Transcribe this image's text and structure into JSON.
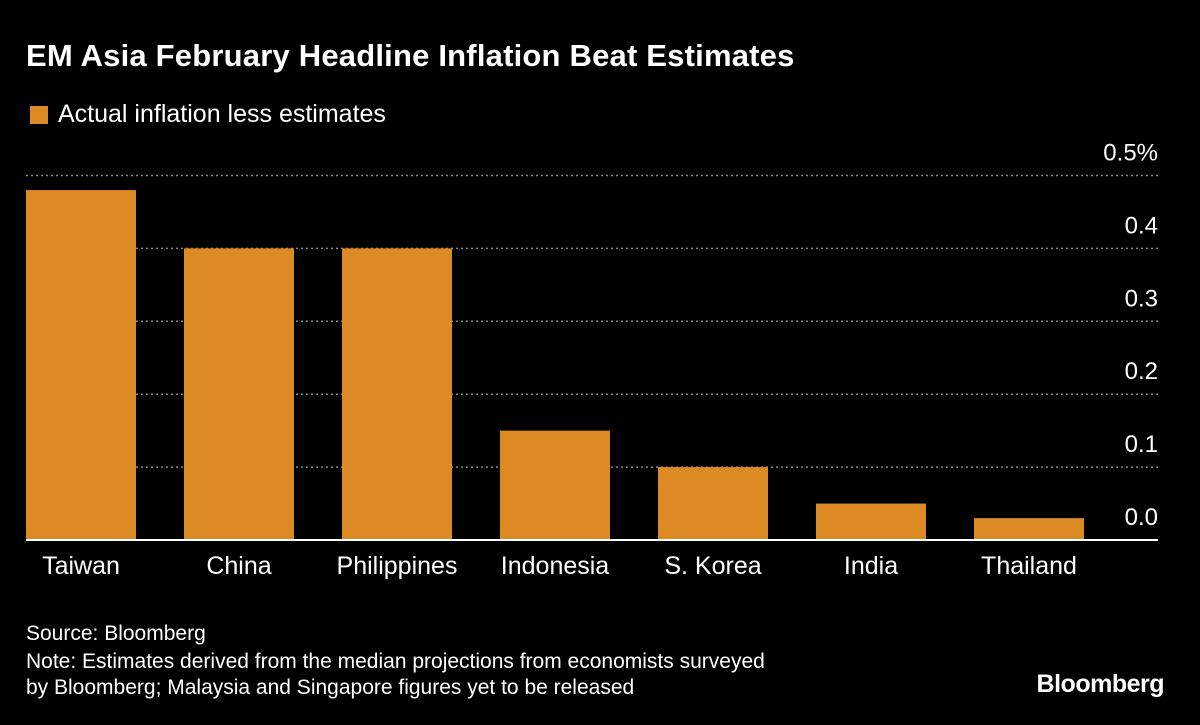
{
  "title": "EM Asia February Headline Inflation Beat Estimates",
  "source": "Source: Bloomberg",
  "note_lines": [
    "Note: Estimates derived from the median projections from economists surveyed",
    "by Bloomberg; Malaysia and Singapore figures yet to be released"
  ],
  "logo": "Bloomberg",
  "colors": {
    "bar": "#DC8A23",
    "background": "#000000",
    "grid": "#888888"
  },
  "chart_data": {
    "type": "bar",
    "title": "EM Asia February Headline Inflation Beat Estimates",
    "categories": [
      "Taiwan",
      "China",
      "Philippines",
      "Indonesia",
      "S. Korea",
      "India",
      "Thailand"
    ],
    "series": [
      {
        "name": "Actual inflation less estimates",
        "values": [
          0.48,
          0.4,
          0.4,
          0.15,
          0.1,
          0.05,
          0.03
        ]
      }
    ],
    "ylim": [
      0,
      0.5
    ],
    "yticks": [
      0.0,
      0.1,
      0.2,
      0.3,
      0.4,
      0.5
    ],
    "ytick_labels": [
      "0.0",
      "0.1",
      "0.2",
      "0.3",
      "0.4",
      "0.5%"
    ],
    "y_axis_position": "right",
    "grid": true,
    "legend_position": "top-left"
  }
}
